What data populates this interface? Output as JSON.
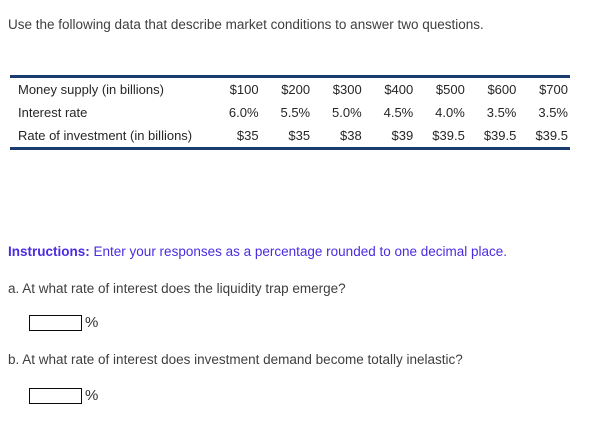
{
  "page": {
    "prompt": "Use the following data that describe market conditions to answer two questions."
  },
  "table": {
    "border_color": "#1b3c6e",
    "rows": [
      {
        "label": "Money supply (in billions)",
        "values": [
          "$100",
          "$200",
          "$300",
          "$400",
          "$500",
          "$600",
          "$700"
        ]
      },
      {
        "label": "Interest rate",
        "values": [
          "6.0%",
          "5.5%",
          "5.0%",
          "4.5%",
          "4.0%",
          "3.5%",
          "3.5%"
        ]
      },
      {
        "label": "Rate of investment (in billions)",
        "values": [
          "$35",
          "$35",
          "$38",
          "$39",
          "$39.5",
          "$39.5",
          "$39.5"
        ]
      }
    ]
  },
  "instructions": {
    "label": "Instructions:",
    "text": "Enter your responses as a percentage rounded to one decimal place.",
    "color": "#4b2be0"
  },
  "questions": [
    {
      "id": "a",
      "text": "a. At what rate of interest does the liquidity trap emerge?",
      "input_value": "",
      "suffix": "%"
    },
    {
      "id": "b",
      "text": "b. At what rate of interest does investment demand become totally inelastic?",
      "input_value": "",
      "suffix": "%"
    }
  ]
}
